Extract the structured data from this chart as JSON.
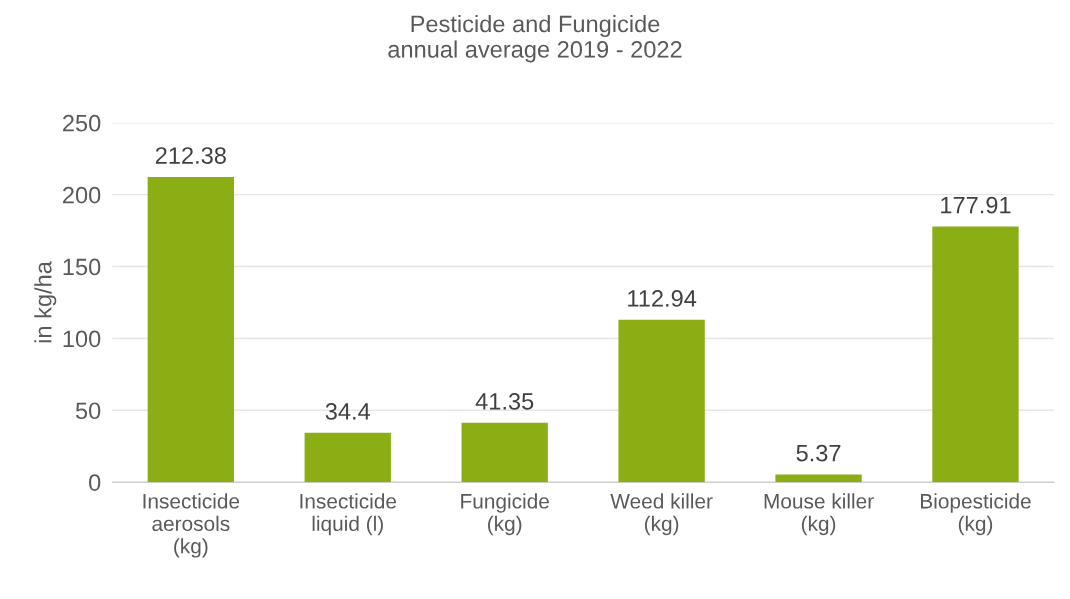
{
  "chart_data": {
    "type": "bar",
    "title": "Pesticide and Fungicide\nannual average 2019 - 2022",
    "ylabel": "in kg/ha",
    "categories": [
      "Insecticide\naerosols\n(kg)",
      "Insecticide\nliquid (l)",
      "Fungicide\n(kg)",
      "Weed killer\n(kg)",
      "Mouse killer\n(kg)",
      "Biopesticide\n(kg)"
    ],
    "values": [
      212.38,
      34.4,
      41.35,
      112.94,
      5.37,
      177.91
    ],
    "color": "#8aae14",
    "ylim": [
      0,
      250
    ],
    "yticks": [
      0,
      50,
      100,
      150,
      200,
      250
    ],
    "grid": "y",
    "data_labels": true,
    "legend": false
  }
}
